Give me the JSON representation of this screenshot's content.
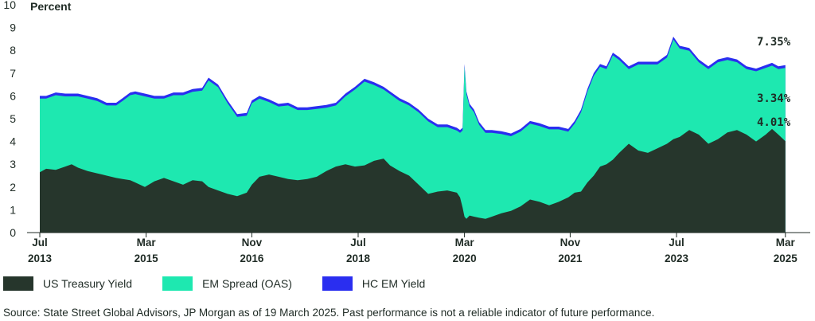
{
  "chart_data": {
    "type": "area",
    "ylabel": "Percent",
    "ylim": [
      0,
      10
    ],
    "yticks": [
      "0",
      "1",
      "2",
      "3",
      "4",
      "5",
      "6",
      "7",
      "8",
      "9",
      "10"
    ],
    "xtick_labels": [
      {
        "month": "Jul",
        "year": "2013",
        "t": 2013.5
      },
      {
        "month": "Mar",
        "year": "2015",
        "t": 2015.17
      },
      {
        "month": "Nov",
        "year": "2016",
        "t": 2016.83
      },
      {
        "month": "Jul",
        "year": "2018",
        "t": 2018.5
      },
      {
        "month": "Mar",
        "year": "2020",
        "t": 2020.17
      },
      {
        "month": "Nov",
        "year": "2021",
        "t": 2021.83
      },
      {
        "month": "Jul",
        "year": "2023",
        "t": 2023.5
      },
      {
        "month": "Mar",
        "year": "2025",
        "t": 2025.21
      }
    ],
    "x_range": [
      2013.3,
      2025.6
    ],
    "x": [
      2013.5,
      2013.6,
      2013.75,
      2013.9,
      2014.0,
      2014.1,
      2014.25,
      2014.4,
      2014.55,
      2014.7,
      2014.8,
      2014.92,
      2015.0,
      2015.15,
      2015.3,
      2015.45,
      2015.6,
      2015.75,
      2015.9,
      2016.05,
      2016.15,
      2016.3,
      2016.45,
      2016.6,
      2016.75,
      2016.83,
      2016.95,
      2017.1,
      2017.25,
      2017.4,
      2017.55,
      2017.7,
      2017.85,
      2018.0,
      2018.15,
      2018.3,
      2018.45,
      2018.6,
      2018.75,
      2018.9,
      2019.0,
      2019.15,
      2019.3,
      2019.45,
      2019.6,
      2019.75,
      2019.9,
      2020.05,
      2020.1,
      2020.14,
      2020.17,
      2020.2,
      2020.25,
      2020.32,
      2020.4,
      2020.5,
      2020.6,
      2020.75,
      2020.9,
      2021.05,
      2021.2,
      2021.35,
      2021.5,
      2021.65,
      2021.8,
      2021.9,
      2022.0,
      2022.1,
      2022.2,
      2022.3,
      2022.4,
      2022.5,
      2022.6,
      2022.75,
      2022.9,
      2023.05,
      2023.2,
      2023.35,
      2023.45,
      2023.55,
      2023.7,
      2023.85,
      2024.0,
      2024.15,
      2024.3,
      2024.45,
      2024.6,
      2024.75,
      2024.9,
      2025.0,
      2025.1,
      2025.21
    ],
    "series": [
      {
        "name": "US Treasury Yield",
        "color": "#26362c",
        "values": [
          2.65,
          2.8,
          2.75,
          2.9,
          3.0,
          2.85,
          2.7,
          2.6,
          2.5,
          2.4,
          2.35,
          2.3,
          2.2,
          2.0,
          2.25,
          2.4,
          2.25,
          2.1,
          2.3,
          2.25,
          2.0,
          1.85,
          1.7,
          1.6,
          1.75,
          2.1,
          2.45,
          2.55,
          2.45,
          2.35,
          2.3,
          2.35,
          2.45,
          2.7,
          2.9,
          3.0,
          2.9,
          2.95,
          3.15,
          3.25,
          2.95,
          2.7,
          2.5,
          2.1,
          1.7,
          1.8,
          1.85,
          1.75,
          1.55,
          1.1,
          0.7,
          0.6,
          0.75,
          0.7,
          0.65,
          0.6,
          0.7,
          0.85,
          0.95,
          1.15,
          1.45,
          1.35,
          1.2,
          1.35,
          1.55,
          1.75,
          1.8,
          2.2,
          2.5,
          2.9,
          3.0,
          3.2,
          3.5,
          3.9,
          3.6,
          3.5,
          3.7,
          3.9,
          4.1,
          4.2,
          4.5,
          4.3,
          3.9,
          4.1,
          4.4,
          4.5,
          4.3,
          4.0,
          4.3,
          4.55,
          4.3,
          4.01
        ]
      },
      {
        "name": "EM Spread (OAS)",
        "color": "#1ee8b0",
        "values": [
          3.35,
          3.2,
          3.4,
          3.2,
          3.1,
          3.25,
          3.3,
          3.3,
          3.2,
          3.3,
          3.55,
          3.85,
          4.0,
          4.1,
          3.75,
          3.6,
          3.9,
          4.05,
          4.0,
          4.1,
          4.8,
          4.65,
          4.1,
          3.6,
          3.5,
          3.7,
          3.55,
          3.3,
          3.2,
          3.35,
          3.2,
          3.15,
          3.1,
          2.9,
          2.8,
          3.1,
          3.5,
          3.8,
          3.45,
          3.15,
          3.25,
          3.2,
          3.2,
          3.3,
          3.3,
          2.95,
          2.9,
          2.85,
          2.95,
          3.5,
          6.7,
          5.6,
          4.9,
          4.7,
          4.2,
          3.9,
          3.8,
          3.6,
          3.4,
          3.4,
          3.45,
          3.45,
          3.45,
          3.3,
          3.0,
          3.15,
          3.6,
          4.1,
          4.5,
          4.5,
          4.3,
          4.7,
          4.2,
          3.4,
          3.9,
          4.0,
          3.8,
          3.9,
          4.5,
          4.0,
          3.6,
          3.3,
          3.4,
          3.5,
          3.3,
          3.1,
          3.0,
          3.2,
          3.05,
          2.9,
          3.0,
          3.34
        ]
      }
    ],
    "total_series": {
      "name": "HC EM Yield",
      "color": "#2a2ef0",
      "values": [
        6.0,
        6.0,
        6.15,
        6.1,
        6.1,
        6.1,
        6.0,
        5.9,
        5.7,
        5.7,
        5.9,
        6.15,
        6.2,
        6.1,
        6.0,
        6.0,
        6.15,
        6.15,
        6.3,
        6.35,
        6.8,
        6.5,
        5.8,
        5.2,
        5.25,
        5.8,
        6.0,
        5.85,
        5.65,
        5.7,
        5.5,
        5.5,
        5.55,
        5.6,
        5.7,
        6.1,
        6.4,
        6.75,
        6.6,
        6.4,
        6.2,
        5.9,
        5.7,
        5.4,
        5.0,
        4.75,
        4.75,
        4.6,
        4.5,
        4.6,
        7.4,
        6.2,
        5.65,
        5.4,
        4.85,
        4.5,
        4.5,
        4.45,
        4.35,
        4.55,
        4.9,
        4.8,
        4.65,
        4.65,
        4.55,
        4.9,
        5.4,
        6.3,
        7.0,
        7.4,
        7.3,
        7.9,
        7.7,
        7.3,
        7.5,
        7.5,
        7.5,
        7.8,
        8.6,
        8.2,
        8.1,
        7.6,
        7.3,
        7.6,
        7.7,
        7.6,
        7.3,
        7.2,
        7.35,
        7.45,
        7.3,
        7.35
      ]
    },
    "annotations": [
      "7.35%",
      "3.34%",
      "4.01%"
    ]
  },
  "legend": [
    {
      "label": "US Treasury Yield",
      "color": "#26362c"
    },
    {
      "label": "EM Spread (OAS)",
      "color": "#1ee8b0"
    },
    {
      "label": "HC EM Yield",
      "color": "#2a2ef0"
    }
  ],
  "source": "Source: State Street Global Advisors, JP Morgan as of 19 March 2025. Past performance is not a reliable indicator of future performance."
}
